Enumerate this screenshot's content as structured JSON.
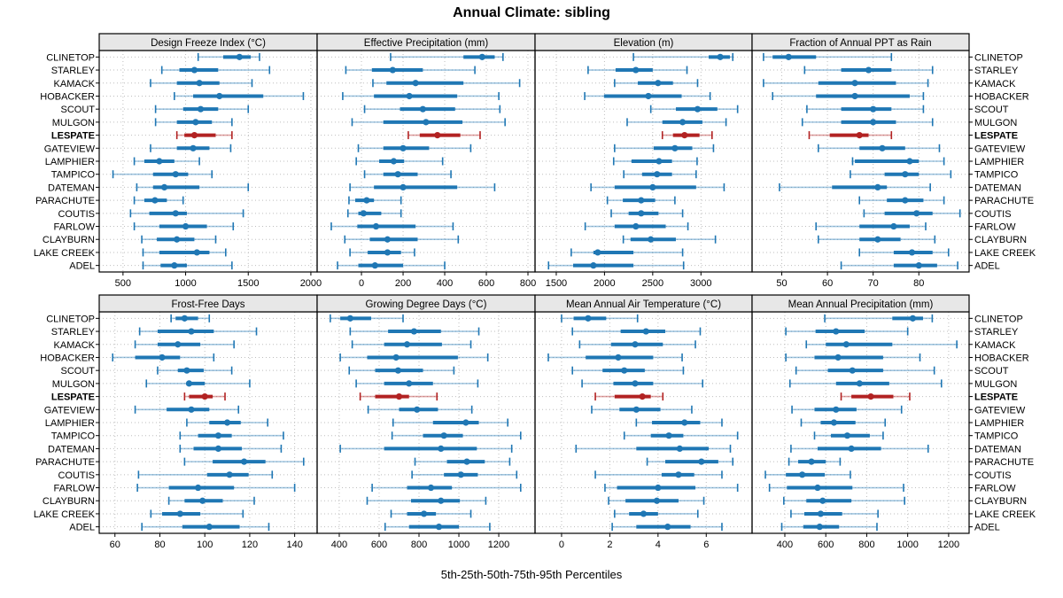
{
  "title": "Annual Climate: sibling",
  "caption": "5th-25th-50th-75th-95th Percentiles",
  "colors": {
    "series": "#1F77B4",
    "series_range": "rgba(31,119,180,0.42)",
    "highlight": "#B22222",
    "highlight_range": "rgba(178,34,34,0.42)",
    "header_bg": "#E7E7E7",
    "panel_border": "#000000",
    "grid": "#BEBEBE"
  },
  "highlight_station": "LESPATE",
  "stations": [
    "CLINETOP",
    "STARLEY",
    "KAMACK",
    "HOBACKER",
    "SCOUT",
    "MULGON",
    "LESPATE",
    "GATEVIEW",
    "LAMPHIER",
    "TAMPICO",
    "DATEMAN",
    "PARACHUTE",
    "COUTIS",
    "FARLOW",
    "CLAYBURN",
    "LAKE CREEK",
    "ADEL"
  ],
  "chart_data": {
    "type": "dotplot-percentile-errorbars",
    "percentiles": [
      5,
      25,
      50,
      75,
      95
    ],
    "legend_position": "none",
    "grid": "dotted",
    "panels": [
      {
        "title": "Design Freeze Index (°C)",
        "row": 0,
        "col": 0,
        "ticks": [
          500,
          1000,
          1500,
          2000
        ],
        "domain": [
          310,
          2050
        ],
        "series": [
          [
            1100,
            1300,
            1430,
            1520,
            1590
          ],
          [
            810,
            950,
            1070,
            1260,
            1670
          ],
          [
            720,
            930,
            1110,
            1270,
            1530
          ],
          [
            910,
            1060,
            1270,
            1620,
            1940
          ],
          [
            760,
            980,
            1120,
            1260,
            1500
          ],
          [
            760,
            930,
            1080,
            1210,
            1370
          ],
          [
            930,
            990,
            1070,
            1240,
            1370
          ],
          [
            720,
            930,
            1060,
            1190,
            1360
          ],
          [
            590,
            670,
            790,
            910,
            1110
          ],
          [
            420,
            740,
            920,
            1020,
            1210
          ],
          [
            610,
            740,
            830,
            1110,
            1500
          ],
          [
            590,
            670,
            755,
            850,
            980
          ],
          [
            560,
            710,
            920,
            1010,
            1460
          ],
          [
            590,
            790,
            1000,
            1170,
            1380
          ],
          [
            650,
            770,
            930,
            1070,
            1240
          ],
          [
            660,
            790,
            1090,
            1190,
            1320
          ],
          [
            660,
            800,
            910,
            1010,
            1370
          ]
        ]
      },
      {
        "title": "Effective Precipitation (mm)",
        "row": 0,
        "col": 1,
        "ticks": [
          0,
          200,
          400,
          600,
          800
        ],
        "domain": [
          -213,
          834
        ],
        "series": [
          [
            140,
            490,
            580,
            640,
            680
          ],
          [
            -75,
            50,
            150,
            295,
            545
          ],
          [
            55,
            120,
            260,
            490,
            760
          ],
          [
            -90,
            60,
            230,
            460,
            660
          ],
          [
            15,
            185,
            295,
            450,
            665
          ],
          [
            -45,
            105,
            310,
            485,
            690
          ],
          [
            225,
            280,
            365,
            475,
            570
          ],
          [
            -15,
            105,
            200,
            325,
            525
          ],
          [
            -25,
            85,
            155,
            205,
            390
          ],
          [
            15,
            105,
            175,
            270,
            430
          ],
          [
            -55,
            60,
            200,
            460,
            640
          ],
          [
            -60,
            -30,
            25,
            60,
            190
          ],
          [
            -65,
            -15,
            10,
            95,
            190
          ],
          [
            -145,
            -20,
            70,
            260,
            440
          ],
          [
            -80,
            40,
            125,
            270,
            465
          ],
          [
            -55,
            30,
            125,
            190,
            255
          ],
          [
            -115,
            -15,
            65,
            200,
            400
          ]
        ]
      },
      {
        "title": "Elevation (m)",
        "row": 0,
        "col": 2,
        "ticks": [
          1500,
          2000,
          2500,
          3000
        ],
        "domain": [
          1280,
          3530
        ],
        "series": [
          [
            2300,
            3080,
            3200,
            3300,
            3330
          ],
          [
            1830,
            2115,
            2325,
            2500,
            2855
          ],
          [
            2105,
            2345,
            2555,
            2710,
            2965
          ],
          [
            1795,
            1995,
            2455,
            2800,
            3095
          ],
          [
            2480,
            2740,
            2965,
            3170,
            3380
          ],
          [
            2235,
            2600,
            2810,
            3015,
            3260
          ],
          [
            2600,
            2710,
            2830,
            2985,
            3115
          ],
          [
            2105,
            2510,
            2730,
            2910,
            3130
          ],
          [
            2095,
            2280,
            2565,
            2700,
            2960
          ],
          [
            2200,
            2390,
            2545,
            2700,
            2950
          ],
          [
            1860,
            2105,
            2500,
            2950,
            3240
          ],
          [
            2030,
            2190,
            2380,
            2525,
            2730
          ],
          [
            2070,
            2250,
            2380,
            2560,
            2810
          ],
          [
            1800,
            2105,
            2325,
            2635,
            2865
          ],
          [
            2195,
            2270,
            2480,
            2740,
            3150
          ],
          [
            1655,
            1885,
            1930,
            2300,
            2810
          ],
          [
            1420,
            1675,
            1885,
            2300,
            2820
          ]
        ]
      },
      {
        "title": "Fraction of Annual PPT as Rain",
        "row": 0,
        "col": 3,
        "ticks": [
          50,
          60,
          70,
          80
        ],
        "domain": [
          43.5,
          91
        ],
        "series": [
          [
            46,
            48,
            51.5,
            57.5,
            74
          ],
          [
            55,
            63,
            69,
            74,
            83
          ],
          [
            46,
            58,
            66,
            75,
            82
          ],
          [
            48,
            57.5,
            66,
            78,
            81
          ],
          [
            55.5,
            63,
            70,
            74,
            81
          ],
          [
            54.5,
            63,
            70,
            75,
            83
          ],
          [
            56,
            60.5,
            67,
            69,
            74
          ],
          [
            58,
            67,
            72,
            77,
            84.5
          ],
          [
            65.5,
            66,
            78,
            80,
            85.5
          ],
          [
            65,
            72.5,
            77,
            80,
            87
          ],
          [
            49.5,
            61,
            71,
            73,
            82.5
          ],
          [
            67,
            73,
            77,
            81,
            85.5
          ],
          [
            68,
            72.5,
            79.5,
            83,
            89
          ],
          [
            57.5,
            67,
            74.5,
            78,
            81.5
          ],
          [
            58,
            67,
            71,
            76,
            83.5
          ],
          [
            67,
            74.5,
            78.5,
            83,
            86.5
          ],
          [
            63,
            74.5,
            80,
            84,
            88.5
          ]
        ]
      },
      {
        "title": "Frost-Free Days",
        "row": 1,
        "col": 0,
        "ticks": [
          60,
          80,
          100,
          120,
          140
        ],
        "domain": [
          53,
          150
        ],
        "series": [
          [
            85,
            87,
            91,
            97,
            102
          ],
          [
            71,
            79,
            94,
            104,
            123
          ],
          [
            69,
            79,
            88,
            98,
            113
          ],
          [
            59,
            69,
            81,
            89,
            104
          ],
          [
            79,
            88,
            92,
            99.5,
            112
          ],
          [
            74,
            92,
            93,
            100,
            120
          ],
          [
            91,
            93,
            100,
            103.5,
            109
          ],
          [
            69,
            83,
            94,
            102,
            115
          ],
          [
            92,
            102,
            110,
            116,
            128
          ],
          [
            89,
            97,
            106,
            112,
            135
          ],
          [
            89,
            95,
            106,
            116.5,
            134
          ],
          [
            91,
            103.5,
            117.5,
            127,
            144
          ],
          [
            70.5,
            101,
            111,
            119.5,
            130
          ],
          [
            70,
            84,
            97,
            113,
            140
          ],
          [
            84,
            91,
            99,
            108,
            122
          ],
          [
            76,
            81,
            89,
            98,
            117
          ],
          [
            72,
            90,
            102,
            115.5,
            128.5
          ]
        ]
      },
      {
        "title": "Growing Degree Days (°C)",
        "row": 1,
        "col": 1,
        "ticks": [
          400,
          600,
          800,
          1000,
          1200
        ],
        "domain": [
          289,
          1382
        ],
        "series": [
          [
            355,
            405,
            455,
            560,
            720
          ],
          [
            455,
            645,
            775,
            910,
            1100
          ],
          [
            465,
            625,
            740,
            915,
            1060
          ],
          [
            405,
            540,
            685,
            995,
            1145
          ],
          [
            450,
            580,
            695,
            820,
            975
          ],
          [
            485,
            625,
            750,
            870,
            1095
          ],
          [
            505,
            580,
            700,
            750,
            890
          ],
          [
            545,
            700,
            790,
            895,
            1065
          ],
          [
            670,
            870,
            1035,
            1100,
            1245
          ],
          [
            665,
            820,
            925,
            1020,
            1310
          ],
          [
            405,
            625,
            910,
            1090,
            1265
          ],
          [
            780,
            940,
            1040,
            1130,
            1255
          ],
          [
            765,
            925,
            1010,
            1095,
            1290
          ],
          [
            565,
            740,
            860,
            965,
            1310
          ],
          [
            540,
            760,
            910,
            1005,
            1135
          ],
          [
            660,
            740,
            825,
            885,
            1060
          ],
          [
            630,
            750,
            900,
            1000,
            1155
          ]
        ]
      },
      {
        "title": "Mean Annual Air Temperature (°C)",
        "row": 1,
        "col": 2,
        "ticks": [
          0,
          2,
          4,
          6
        ],
        "domain": [
          -1.1,
          7.9
        ],
        "series": [
          [
            0,
            0.5,
            1.1,
            1.85,
            3.15
          ],
          [
            0.45,
            2.45,
            3.5,
            4.3,
            5.75
          ],
          [
            0.75,
            2.05,
            3.05,
            4.2,
            5.55
          ],
          [
            -0.55,
            1.0,
            2.35,
            3.8,
            5.0
          ],
          [
            0.45,
            1.7,
            2.6,
            3.45,
            5.05
          ],
          [
            0.85,
            2.15,
            3.05,
            3.8,
            5.85
          ],
          [
            1.4,
            2.2,
            3.35,
            3.7,
            4.2
          ],
          [
            1.25,
            2.4,
            3.1,
            4.1,
            5.4
          ],
          [
            3.1,
            3.75,
            5.1,
            5.75,
            6.65
          ],
          [
            2.6,
            3.7,
            4.45,
            5.05,
            7.3
          ],
          [
            0.6,
            3.1,
            4.9,
            6.1,
            7.0
          ],
          [
            3.55,
            4.3,
            5.8,
            6.5,
            7.1
          ],
          [
            1.4,
            4.15,
            4.85,
            5.5,
            6.65
          ],
          [
            1.8,
            2.3,
            4.0,
            5.55,
            7.3
          ],
          [
            1.95,
            2.65,
            3.95,
            4.85,
            5.9
          ],
          [
            2.2,
            2.8,
            3.4,
            4.0,
            5.65
          ],
          [
            2.1,
            3.1,
            4.4,
            5.35,
            6.65
          ]
        ]
      },
      {
        "title": "Mean Annual Precipitation (mm)",
        "row": 1,
        "col": 3,
        "ticks": [
          400,
          600,
          800,
          1000,
          1200
        ],
        "domain": [
          240,
          1300
        ],
        "series": [
          [
            595,
            925,
            1025,
            1075,
            1120
          ],
          [
            405,
            550,
            650,
            790,
            1000
          ],
          [
            505,
            600,
            700,
            925,
            1240
          ],
          [
            405,
            545,
            660,
            880,
            1060
          ],
          [
            455,
            610,
            730,
            880,
            1130
          ],
          [
            425,
            650,
            765,
            910,
            1165
          ],
          [
            675,
            725,
            820,
            930,
            1010
          ],
          [
            435,
            545,
            650,
            750,
            970
          ],
          [
            480,
            575,
            640,
            745,
            890
          ],
          [
            545,
            625,
            705,
            815,
            880
          ],
          [
            430,
            560,
            725,
            870,
            1100
          ],
          [
            420,
            465,
            530,
            600,
            670
          ],
          [
            305,
            405,
            485,
            595,
            720
          ],
          [
            325,
            410,
            560,
            730,
            980
          ],
          [
            395,
            505,
            585,
            725,
            985
          ],
          [
            430,
            495,
            575,
            680,
            855
          ],
          [
            385,
            490,
            570,
            665,
            850
          ]
        ]
      }
    ]
  }
}
